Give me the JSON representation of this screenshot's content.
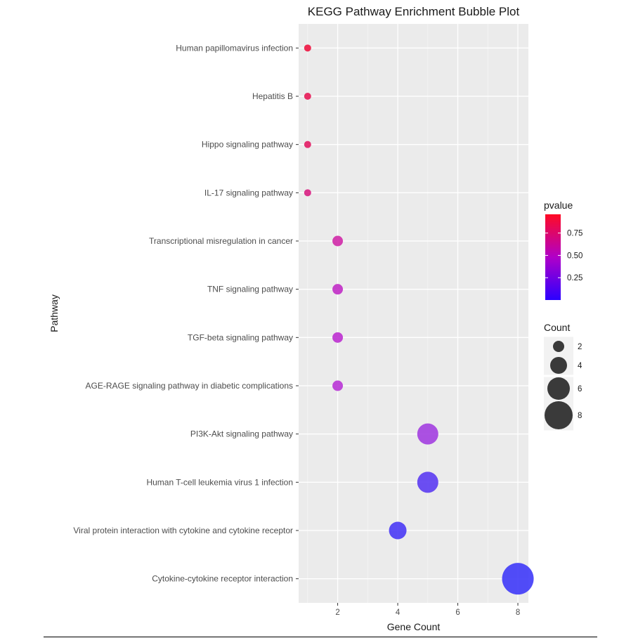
{
  "chart_data": {
    "type": "scatter",
    "title": "KEGG Pathway Enrichment Bubble Plot",
    "xlabel": "Gene Count",
    "ylabel": "Pathway",
    "xlim": [
      0.7,
      8.35
    ],
    "x_ticks": [
      2,
      4,
      6,
      8
    ],
    "x_tick_labels": [
      "2",
      "4",
      "6",
      "8"
    ],
    "grid": true,
    "points": [
      {
        "pathway": "Human papillomavirus infection",
        "count": 1,
        "pvalue": 0.92,
        "color": "#ee1541"
      },
      {
        "pathway": "Hepatitis B",
        "count": 1,
        "pvalue": 0.86,
        "color": "#e71a57"
      },
      {
        "pathway": "Hippo signaling pathway",
        "count": 1,
        "pvalue": 0.82,
        "color": "#e21c64"
      },
      {
        "pathway": "IL-17 signaling pathway",
        "count": 1,
        "pvalue": 0.74,
        "color": "#d81f82"
      },
      {
        "pathway": "Transcriptional misregulation in cancer",
        "count": 2,
        "pvalue": 0.66,
        "color": "#d02aa8"
      },
      {
        "pathway": "TNF signaling pathway",
        "count": 2,
        "pvalue": 0.55,
        "color": "#c12dc7"
      },
      {
        "pathway": "TGF-beta signaling pathway",
        "count": 2,
        "pvalue": 0.53,
        "color": "#bd30d0"
      },
      {
        "pathway": "AGE-RAGE signaling pathway in diabetic complications",
        "count": 2,
        "pvalue": 0.52,
        "color": "#b935d6"
      },
      {
        "pathway": "PI3K-Akt signaling pathway",
        "count": 5,
        "pvalue": 0.42,
        "color": "#a33fe0"
      },
      {
        "pathway": "Human T-cell leukemia virus 1 infection",
        "count": 5,
        "pvalue": 0.12,
        "color": "#5c3cf2"
      },
      {
        "pathway": "Viral protein interaction with cytokine and cytokine receptor",
        "count": 4,
        "pvalue": 0.06,
        "color": "#4a3af5"
      },
      {
        "pathway": "Cytokine-cytokine receptor interaction",
        "count": 8,
        "pvalue": 0.02,
        "color": "#3f3af8"
      }
    ],
    "legend_pvalue": {
      "title": "pvalue",
      "range": [
        0.0,
        0.96
      ],
      "ticks": [
        0.75,
        0.5,
        0.25
      ],
      "tick_labels": [
        "0.75",
        "0.50",
        "0.25"
      ],
      "low_color": "#2b00ff",
      "high_color": "#ff0b24",
      "placement": "right"
    },
    "legend_count": {
      "title": "Count",
      "entries": [
        2,
        4,
        6,
        8
      ],
      "entry_labels": [
        "2",
        "4",
        "6",
        "8"
      ],
      "color": "#3a3a3a",
      "placement": "right"
    }
  }
}
